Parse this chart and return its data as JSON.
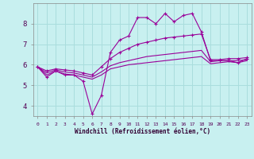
{
  "xlabel": "Windchill (Refroidissement éolien,°C)",
  "background_color": "#c8f0f0",
  "grid_color": "#aadddd",
  "line_color": "#990099",
  "x_ticks": [
    0,
    1,
    2,
    3,
    4,
    5,
    6,
    7,
    8,
    9,
    10,
    11,
    12,
    13,
    14,
    15,
    16,
    17,
    18,
    19,
    20,
    21,
    22,
    23
  ],
  "y_ticks": [
    4,
    5,
    6,
    7,
    8
  ],
  "xlim": [
    -0.5,
    23.5
  ],
  "ylim": [
    3.5,
    9.0
  ],
  "curves": [
    {
      "x": [
        0,
        1,
        2,
        3,
        4,
        5,
        6,
        7,
        8,
        9,
        10,
        11,
        12,
        13,
        14,
        15,
        16,
        17,
        18,
        19,
        20,
        21,
        22,
        23
      ],
      "y": [
        5.9,
        5.4,
        5.7,
        5.5,
        5.5,
        5.2,
        3.6,
        4.5,
        6.6,
        7.2,
        7.4,
        8.3,
        8.3,
        8.0,
        8.5,
        8.1,
        8.4,
        8.5,
        7.6,
        6.2,
        6.2,
        6.2,
        6.1,
        6.3
      ],
      "marker": true
    },
    {
      "x": [
        0,
        1,
        2,
        3,
        4,
        5,
        6,
        7,
        8,
        9,
        10,
        11,
        12,
        13,
        14,
        15,
        16,
        17,
        18,
        19,
        20,
        21,
        22,
        23
      ],
      "y": [
        5.9,
        5.7,
        5.8,
        5.75,
        5.7,
        5.6,
        5.5,
        5.9,
        6.3,
        6.6,
        6.8,
        7.0,
        7.1,
        7.2,
        7.3,
        7.35,
        7.4,
        7.45,
        7.5,
        6.25,
        6.25,
        6.3,
        6.3,
        6.35
      ],
      "marker": true
    },
    {
      "x": [
        0,
        1,
        2,
        3,
        4,
        5,
        6,
        7,
        8,
        9,
        10,
        11,
        12,
        13,
        14,
        15,
        16,
        17,
        18,
        19,
        20,
        21,
        22,
        23
      ],
      "y": [
        5.9,
        5.6,
        5.75,
        5.65,
        5.6,
        5.5,
        5.4,
        5.65,
        5.95,
        6.1,
        6.2,
        6.3,
        6.4,
        6.45,
        6.5,
        6.55,
        6.6,
        6.65,
        6.7,
        6.15,
        6.2,
        6.2,
        6.2,
        6.25
      ],
      "marker": false
    },
    {
      "x": [
        0,
        1,
        2,
        3,
        4,
        5,
        6,
        7,
        8,
        9,
        10,
        11,
        12,
        13,
        14,
        15,
        16,
        17,
        18,
        19,
        20,
        21,
        22,
        23
      ],
      "y": [
        5.9,
        5.5,
        5.7,
        5.55,
        5.5,
        5.4,
        5.3,
        5.5,
        5.8,
        5.9,
        6.0,
        6.05,
        6.1,
        6.15,
        6.2,
        6.25,
        6.3,
        6.35,
        6.4,
        6.05,
        6.1,
        6.15,
        6.1,
        6.2
      ],
      "marker": false
    }
  ]
}
